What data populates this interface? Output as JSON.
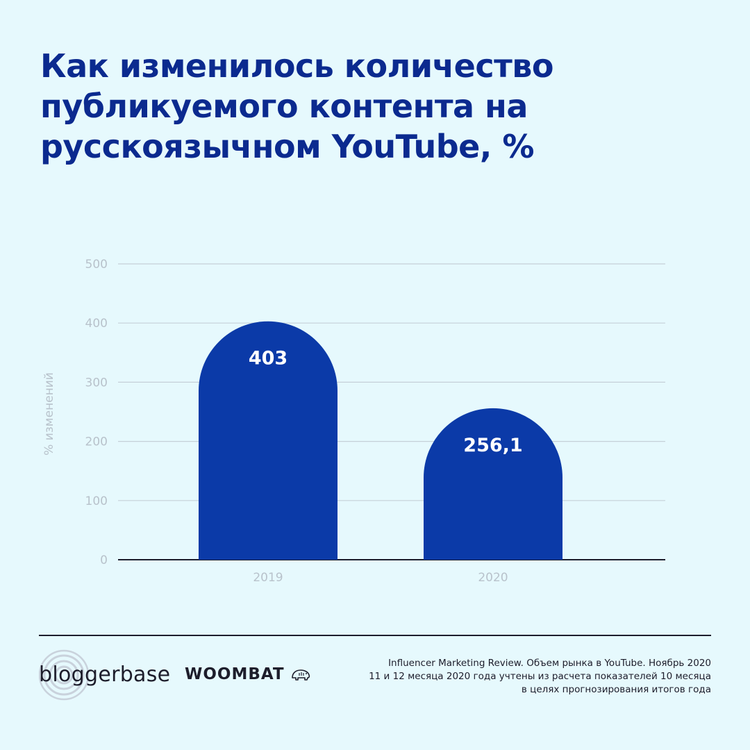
{
  "title_lines": [
    "Как изменилось количество",
    "публикуемого контента на",
    "русскоязычном YouTube, %"
  ],
  "chart_data": {
    "type": "bar",
    "title": "Как изменилось количество публикуемого контента на русскоязычном YouTube, %",
    "categories": [
      "2019",
      "2020"
    ],
    "values": [
      403,
      256.1
    ],
    "data_labels": [
      "403",
      "256,1"
    ],
    "ylabel": "% изменений",
    "yticks": [
      0,
      100,
      200,
      300,
      400,
      500
    ],
    "ylim": [
      0,
      500
    ],
    "grid": true,
    "legend": "none",
    "bar_shape": "rounded-top",
    "colors": {
      "bar": "#0b3aa8",
      "gridline": "#c5d0d8",
      "axis": "#1d1d2b",
      "tick_label": "#b8c2cb",
      "data_label": "#ffffff"
    }
  },
  "logos": {
    "bloggerbase": "bloggerbase",
    "woombat": "WOOMBAT",
    "woombat_icon": "wombat-icon",
    "bloggerbase_icon": "concentric-circles-icon"
  },
  "source_lines": [
    "Influencer Marketing Review. Объем рынка в YouTube. Ноябрь 2020",
    "11 и 12 месяца 2020 года учтены из расчета показателей 10 месяца",
    "в целях прогнозирования итогов года"
  ],
  "colors": {
    "background": "#e6f9fd",
    "title": "#0b2a8f",
    "text_dark": "#1d1d2b"
  }
}
